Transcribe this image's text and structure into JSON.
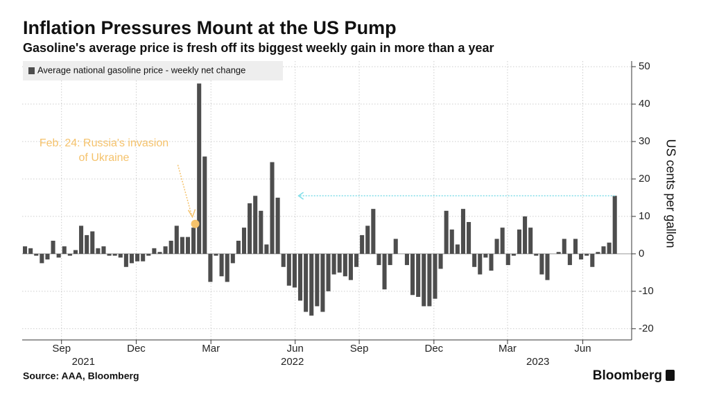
{
  "chart_data": {
    "type": "bar",
    "title": "Inflation Pressures Mount at the US Pump",
    "subtitle": "Gasoline's average price is fresh off its biggest weekly gain in more than a year",
    "y_axis_label": "US cents per gallon",
    "source": "Source: AAA, Bloomberg",
    "brand": "Bloomberg",
    "series": [
      {
        "name": "Average national gasoline price - weekly net change",
        "color": "#4d4d4d",
        "values": [
          2,
          1.5,
          -0.5,
          -2.5,
          -1.5,
          3.5,
          -1,
          2,
          -0.5,
          1,
          7.5,
          5,
          6,
          1.5,
          2,
          -0.5,
          -0.5,
          -1,
          -3.5,
          -2.5,
          -2,
          -2,
          -0.5,
          1.5,
          0.5,
          2,
          3.5,
          7.5,
          4.5,
          4.5,
          7,
          45.5,
          26,
          -7.5,
          -0.5,
          -6,
          -7.5,
          -2.5,
          3.5,
          7,
          13.5,
          15.5,
          11.5,
          2.5,
          24.5,
          15,
          -3.5,
          -8.5,
          -9,
          -12.5,
          -15.5,
          -16.5,
          -14,
          -15.5,
          -10,
          -5.5,
          -5,
          -6,
          -7,
          -3.5,
          5,
          7.5,
          12,
          -3,
          -9.5,
          -3,
          4,
          0,
          -3,
          -11,
          -11.5,
          -14,
          -14,
          -12,
          -4,
          11.5,
          6.5,
          2.5,
          12,
          8.5,
          -3.5,
          -5.5,
          -1,
          -4.5,
          4,
          7,
          -3,
          -0.5,
          6.5,
          10,
          7,
          -0.5,
          -5.5,
          -7,
          0,
          0.5,
          4,
          -3,
          4,
          -1.5,
          -0.5,
          -3.5,
          0.5,
          2,
          3,
          15.5
        ]
      }
    ],
    "xlim": [
      -0.5,
      108
    ],
    "xticks": [
      {
        "value": 6.5,
        "label": "Sep"
      },
      {
        "value": 19.8,
        "label": "Dec"
      },
      {
        "value": 33.1,
        "label": "Mar"
      },
      {
        "value": 48.1,
        "label": "Jun"
      },
      {
        "value": 59.5,
        "label": "Sep"
      },
      {
        "value": 72.8,
        "label": "Dec"
      },
      {
        "value": 85.9,
        "label": "Mar"
      },
      {
        "value": 99.3,
        "label": "Jun"
      }
    ],
    "x_group_labels": [
      {
        "value": 10.4,
        "label": "2021"
      },
      {
        "value": 47.6,
        "label": "2022"
      },
      {
        "value": 91.3,
        "label": "2023"
      }
    ],
    "ylim": [
      -23,
      51.5
    ],
    "yticks": [
      -20,
      -10,
      0,
      10,
      20,
      30,
      40,
      50
    ],
    "grid": true,
    "annotations": [
      {
        "lines": [
          "Feb. 24: Russia's invasion",
          "of Ukraine"
        ],
        "color": "#f5c26b",
        "x": 30.3,
        "y": 8
      },
      {
        "color": "#7fdde8",
        "y": 15.5,
        "x_from": 105,
        "x_to": 48.7
      }
    ]
  }
}
